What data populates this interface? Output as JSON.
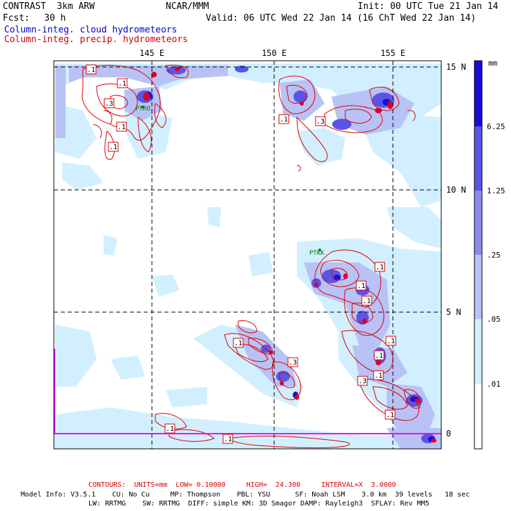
{
  "header": {
    "title": "CONTRAST  3km ARW",
    "center": "NCAR/MMM",
    "init": "Init: 00 UTC Tue 21 Jan 14",
    "fcst_label": "Fcst:",
    "fcst_value": "30 h",
    "valid": "Valid: 06 UTC Wed 22 Jan 14 (16 ChT Wed 22 Jan 14)",
    "field1": "Column-integ. cloud hydrometeors",
    "field2": "Column-integ. precip. hydrometeors"
  },
  "colors": {
    "field1": "#0000cc",
    "field2": "#cc0000",
    "contour": "#dd0000",
    "coast": "#ff00ff",
    "station": "#007700"
  },
  "axes": {
    "lon_labels": [
      "145 E",
      "150 E",
      "155 E"
    ],
    "lat_labels": [
      "15 N",
      "10 N",
      "5 N",
      "0"
    ]
  },
  "colorbar": {
    "unit": "mm",
    "labels": [
      "6.25",
      "1.25",
      ".25",
      ".05",
      ".01"
    ],
    "colors": [
      "#1a0ad8",
      "#5a55e6",
      "#8c8cee",
      "#b8c2f5",
      "#d2efff",
      "#ffffff"
    ]
  },
  "contour_labels": [
    ".1",
    ".1",
    ".3",
    ".1",
    ".1",
    ".1",
    ".3",
    ".1",
    ".1",
    ".1",
    ".1",
    ".1",
    ".3",
    ".1",
    ".3",
    ".1",
    ".1",
    ".1",
    ".1"
  ],
  "stations": [
    "PTRO",
    "PTKK"
  ],
  "footer": {
    "contours": "CONTOURS:  UNITS=mm  LOW= 0.10000     HIGH=  24.300     INTERVAL=X  3.0000",
    "model1": "Model Info: V3.5.1    CU: No Cu     MP: Thompson    PBL: YSU      SF: Noah LSM    3.0 km  39 levels   18 sec",
    "model2": "LW: RRTMG    SW: RRTMG  DIFF: simple KM: 3D Smagor DAMP: Rayleigh3  SFLAY: Rev MM5"
  }
}
